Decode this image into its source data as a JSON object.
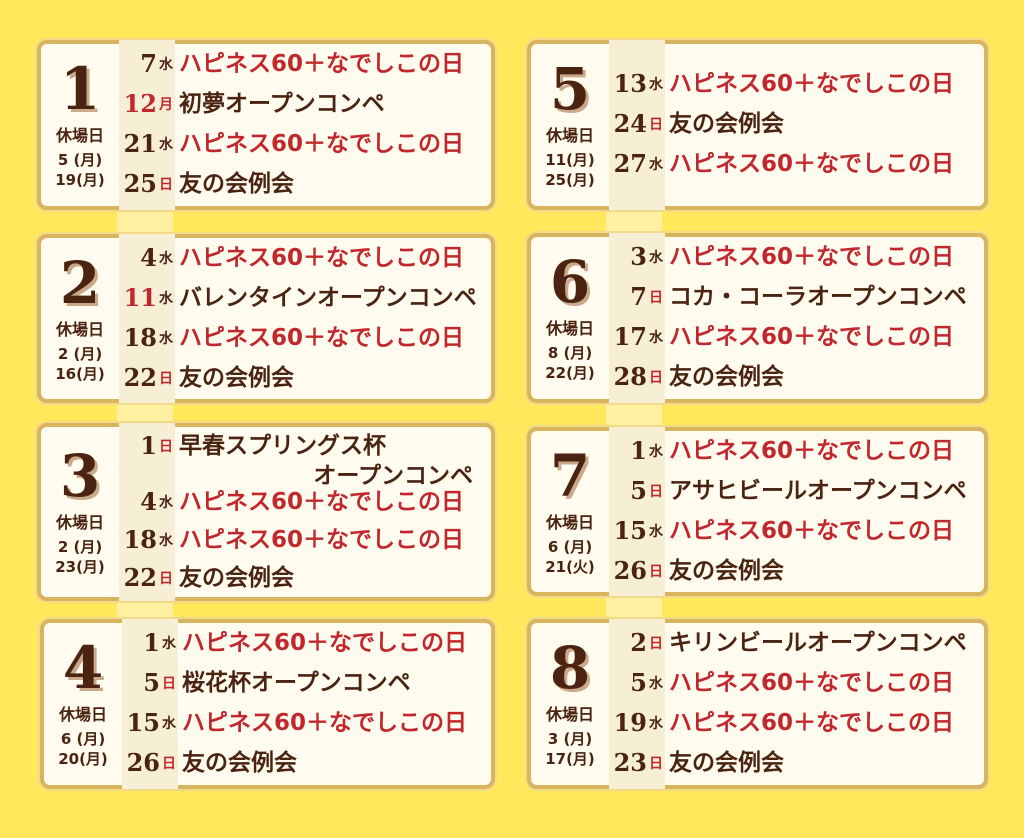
{
  "colors": {
    "background": "#FFE85C",
    "card": "#FFFBEF",
    "border": "#D8B45C",
    "text": "#4A2410",
    "red": "#C0282D"
  },
  "closed_label": "休場日",
  "months": [
    {
      "month": "1",
      "closed": [
        "5 (月)",
        "19(月)"
      ],
      "events": [
        {
          "day": "7",
          "weekday": "水",
          "title": "ハピネス60＋なでしこの日",
          "red_title": true
        },
        {
          "day": "12",
          "weekday": "月",
          "title": "初夢オープンコンペ",
          "red_day": true,
          "red_weekday": true
        },
        {
          "day": "21",
          "weekday": "水",
          "title": "ハピネス60＋なでしこの日",
          "red_title": true
        },
        {
          "day": "25",
          "weekday": "日",
          "title": "友の会例会",
          "red_weekday": true
        }
      ]
    },
    {
      "month": "2",
      "closed": [
        "2 (月)",
        "16(月)"
      ],
      "events": [
        {
          "day": "4",
          "weekday": "水",
          "title": "ハピネス60＋なでしこの日",
          "red_title": true
        },
        {
          "day": "11",
          "weekday": "水",
          "title": "バレンタインオープンコンペ",
          "red_day": true
        },
        {
          "day": "18",
          "weekday": "水",
          "title": "ハピネス60＋なでしこの日",
          "red_title": true
        },
        {
          "day": "22",
          "weekday": "日",
          "title": "友の会例会",
          "red_weekday": true
        }
      ]
    },
    {
      "month": "3",
      "closed": [
        "2 (月)",
        "23(月)"
      ],
      "events": [
        {
          "day": "1",
          "weekday": "日",
          "title": "早春スプリングス杯",
          "title2": "オープンコンペ",
          "red_weekday": true
        },
        {
          "day": "4",
          "weekday": "水",
          "title": "ハピネス60＋なでしこの日",
          "red_title": true
        },
        {
          "day": "18",
          "weekday": "水",
          "title": "ハピネス60＋なでしこの日",
          "red_title": true
        },
        {
          "day": "22",
          "weekday": "日",
          "title": "友の会例会",
          "red_weekday": true
        }
      ]
    },
    {
      "month": "4",
      "closed": [
        "6 (月)",
        "20(月)"
      ],
      "events": [
        {
          "day": "1",
          "weekday": "水",
          "title": "ハピネス60＋なでしこの日",
          "red_title": true
        },
        {
          "day": "5",
          "weekday": "日",
          "title": "桜花杯オープンコンペ",
          "red_weekday": true
        },
        {
          "day": "15",
          "weekday": "水",
          "title": "ハピネス60＋なでしこの日",
          "red_title": true
        },
        {
          "day": "26",
          "weekday": "日",
          "title": "友の会例会",
          "red_weekday": true
        }
      ]
    },
    {
      "month": "5",
      "closed": [
        "11(月)",
        "25(月)"
      ],
      "events": [
        {
          "day": "13",
          "weekday": "水",
          "title": "ハピネス60＋なでしこの日",
          "red_title": true
        },
        {
          "day": "24",
          "weekday": "日",
          "title": "友の会例会",
          "red_weekday": true
        },
        {
          "day": "27",
          "weekday": "水",
          "title": "ハピネス60＋なでしこの日",
          "red_title": true
        }
      ]
    },
    {
      "month": "6",
      "closed": [
        "8 (月)",
        "22(月)"
      ],
      "events": [
        {
          "day": "3",
          "weekday": "水",
          "title": "ハピネス60＋なでしこの日",
          "red_title": true
        },
        {
          "day": "7",
          "weekday": "日",
          "title": "コカ・コーラオープンコンペ",
          "red_weekday": true
        },
        {
          "day": "17",
          "weekday": "水",
          "title": "ハピネス60＋なでしこの日",
          "red_title": true
        },
        {
          "day": "28",
          "weekday": "日",
          "title": "友の会例会",
          "red_weekday": true
        }
      ]
    },
    {
      "month": "7",
      "closed": [
        "6 (月)",
        "21(火)"
      ],
      "events": [
        {
          "day": "1",
          "weekday": "水",
          "title": "ハピネス60＋なでしこの日",
          "red_title": true
        },
        {
          "day": "5",
          "weekday": "日",
          "title": "アサヒビールオープンコンペ",
          "red_weekday": true
        },
        {
          "day": "15",
          "weekday": "水",
          "title": "ハピネス60＋なでしこの日",
          "red_title": true
        },
        {
          "day": "26",
          "weekday": "日",
          "title": "友の会例会",
          "red_weekday": true
        }
      ]
    },
    {
      "month": "8",
      "closed": [
        "3 (月)",
        "17(月)"
      ],
      "events": [
        {
          "day": "2",
          "weekday": "日",
          "title": "キリンビールオープンコンペ",
          "red_weekday": true
        },
        {
          "day": "5",
          "weekday": "水",
          "title": "ハピネス60＋なでしこの日",
          "red_title": true
        },
        {
          "day": "19",
          "weekday": "水",
          "title": "ハピネス60＋なでしこの日",
          "red_title": true
        },
        {
          "day": "23",
          "weekday": "日",
          "title": "友の会例会",
          "red_weekday": true
        }
      ]
    }
  ]
}
